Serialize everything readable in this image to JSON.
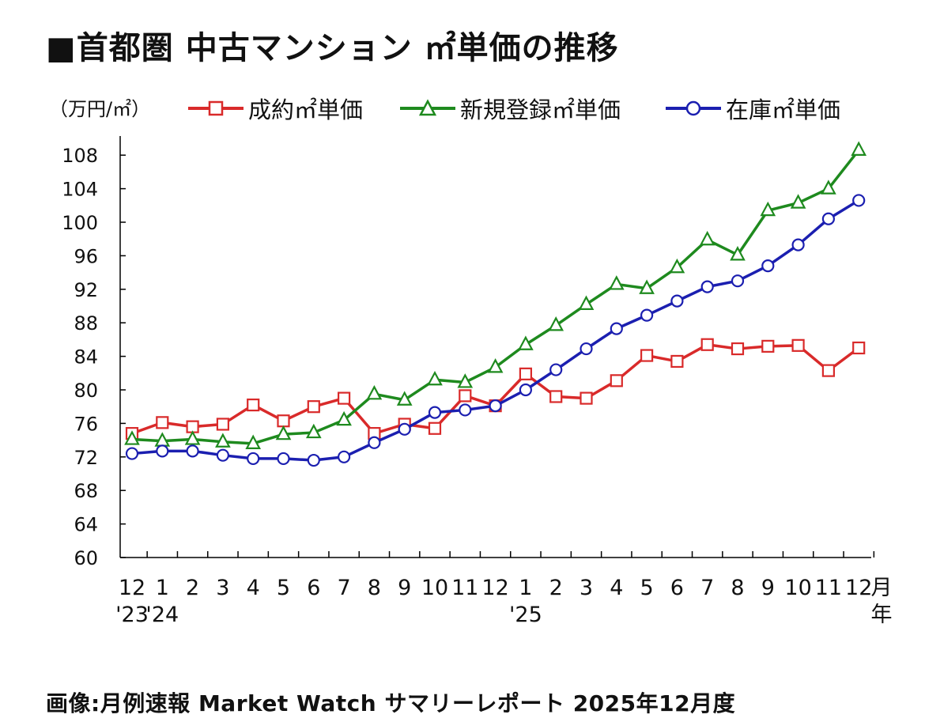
{
  "title": "■首都圏 中古マンション ㎡単価の推移",
  "unit_label": "（万円/㎡）",
  "source": "画像:月例速報 Market Watch サマリーレポート 2025年12月度",
  "chart_data": {
    "type": "line",
    "categories": [
      "12",
      "1",
      "2",
      "3",
      "4",
      "5",
      "6",
      "7",
      "8",
      "9",
      "10",
      "11",
      "12",
      "1",
      "2",
      "3",
      "4",
      "5",
      "6",
      "7",
      "8",
      "9",
      "10",
      "11",
      "12"
    ],
    "year_labels": [
      {
        "index": 0,
        "label": "'23"
      },
      {
        "index": 1,
        "label": "'24"
      },
      {
        "index": 13,
        "label": "'25"
      }
    ],
    "x_unit_month": "月",
    "x_unit_year": "年",
    "y_ticks": [
      60,
      64,
      68,
      72,
      76,
      80,
      84,
      88,
      92,
      96,
      100,
      104,
      108
    ],
    "ylim": [
      60,
      110
    ],
    "grid": false,
    "legend_position": "top",
    "series": [
      {
        "name": "成約㎡単価",
        "color": "#d92a2a",
        "marker": "square",
        "values": [
          74.8,
          76.1,
          75.6,
          75.9,
          78.2,
          76.3,
          78.0,
          79.0,
          74.8,
          75.9,
          75.4,
          79.3,
          78.1,
          81.9,
          79.2,
          79.0,
          81.1,
          84.1,
          83.4,
          85.4,
          84.9,
          85.2,
          85.3,
          82.3,
          85.0
        ]
      },
      {
        "name": "新規登録㎡単価",
        "color": "#1e8a1e",
        "marker": "triangle",
        "values": [
          74.1,
          73.9,
          74.1,
          73.8,
          73.6,
          74.7,
          74.9,
          76.4,
          79.5,
          78.8,
          81.2,
          80.9,
          82.7,
          85.4,
          87.7,
          90.2,
          92.6,
          92.1,
          94.6,
          97.9,
          96.1,
          101.4,
          102.3,
          104.0,
          108.6
        ]
      },
      {
        "name": "在庫㎡単価",
        "color": "#1b1fb0",
        "marker": "circle",
        "values": [
          72.4,
          72.7,
          72.7,
          72.2,
          71.8,
          71.8,
          71.6,
          72.0,
          73.7,
          75.3,
          77.3,
          77.6,
          78.1,
          80.0,
          82.4,
          84.9,
          87.3,
          88.9,
          90.6,
          92.3,
          93.0,
          94.8,
          97.3,
          100.4,
          102.6
        ]
      }
    ]
  }
}
